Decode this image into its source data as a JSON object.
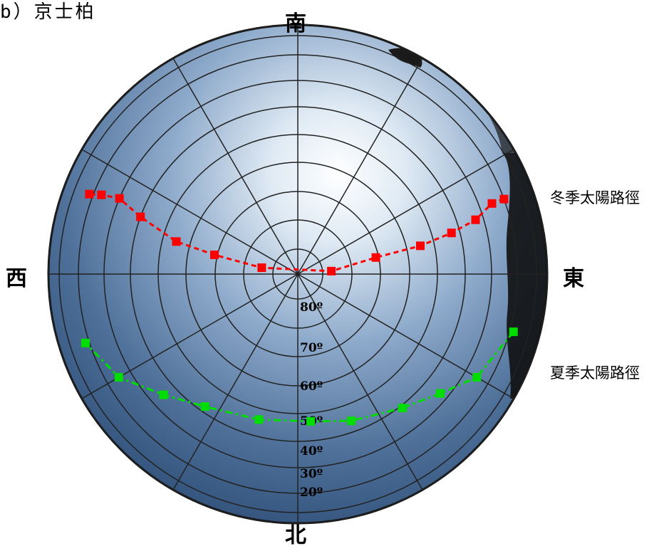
{
  "caption": "b）京士柏",
  "directions": {
    "south": "南",
    "north": "北",
    "west": "西",
    "east": "東"
  },
  "ring_labels": [
    "80º",
    "70º",
    "60º",
    "50º",
    "40º",
    "30º",
    "20º"
  ],
  "legend": {
    "winter": "冬季太陽路徑",
    "summer": "夏季太陽路徑"
  },
  "colors": {
    "winter_path": "#00dd00",
    "summer_path": "#ff0000",
    "sky_center": "#e8f0f8",
    "sky_edge": "#2c4e78",
    "grid": "#222222"
  },
  "paths": {
    "winter": {
      "name": "冬季太陽路徑",
      "points": [
        {
          "azimuth": 255,
          "altitude": 8
        },
        {
          "azimuth": 240,
          "altitude": 15
        },
        {
          "azimuth": 230,
          "altitude": 23
        },
        {
          "azimuth": 218,
          "altitude": 29
        },
        {
          "azimuth": 200,
          "altitude": 34
        },
        {
          "azimuth": 185,
          "altitude": 37
        },
        {
          "azimuth": 165,
          "altitude": 36
        },
        {
          "azimuth": 145,
          "altitude": 32
        },
        {
          "azimuth": 132,
          "altitude": 25
        },
        {
          "azimuth": 120,
          "altitude": 15
        },
        {
          "azimuth": 108,
          "altitude": 8
        }
      ]
    },
    "summer": {
      "name": "夏季太陽路徑",
      "points": [
        {
          "azimuth": 290,
          "altitude": 10
        },
        {
          "azimuth": 290,
          "altitude": 15
        },
        {
          "azimuth": 287,
          "altitude": 23
        },
        {
          "azimuth": 285,
          "altitude": 33
        },
        {
          "azimuth": 283,
          "altitude": 45
        },
        {
          "azimuth": 282,
          "altitude": 61
        },
        {
          "azimuth": 275,
          "altitude": 77
        },
        {
          "azimuth": 80,
          "altitude": 76
        },
        {
          "azimuth": 77,
          "altitude": 59
        },
        {
          "azimuth": 75,
          "altitude": 45
        },
        {
          "azimuth": 70,
          "altitude": 30
        },
        {
          "azimuth": 67,
          "altitude": 20
        },
        {
          "azimuth": 68,
          "altitude": 13
        },
        {
          "azimuth": 69,
          "altitude": 8
        }
      ]
    }
  }
}
